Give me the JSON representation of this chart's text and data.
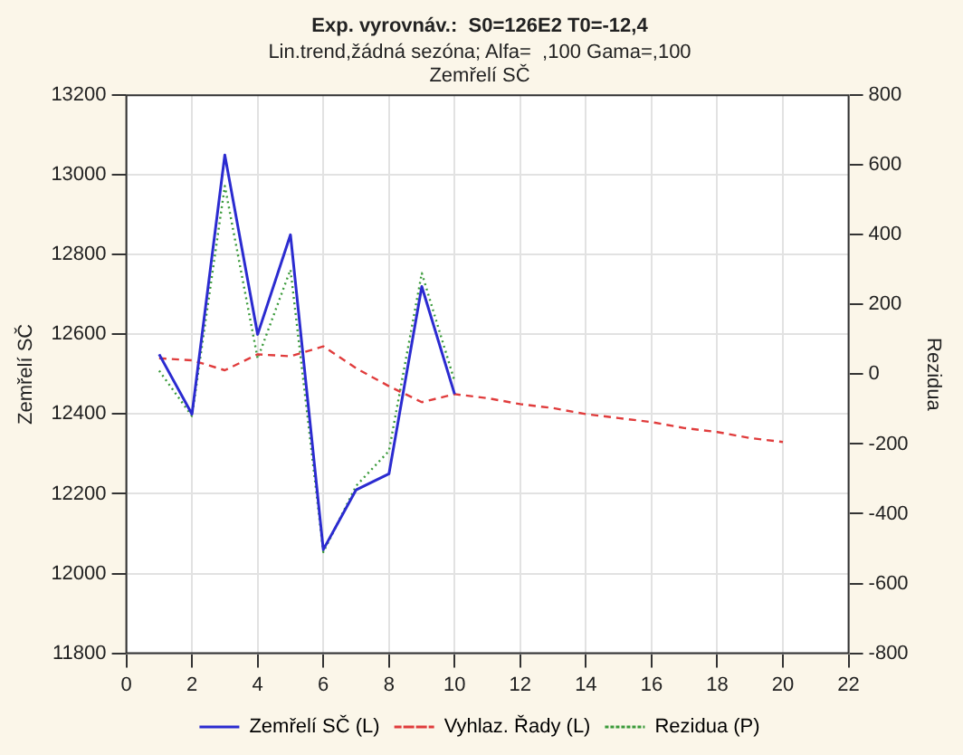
{
  "chart_data": {
    "type": "line",
    "title": "Exp. vyrovnáv.:  S0=126E2 T0=-12,4",
    "subtitle": [
      "Lin.trend,žádná sezóna; Alfa=  ,100 Gama=,100",
      "Zemřelí SČ"
    ],
    "ylabel": "Zemřelí SČ",
    "y2label": "Rezidua",
    "xlim": [
      0,
      22
    ],
    "xticks": [
      0,
      2,
      4,
      6,
      8,
      10,
      12,
      14,
      16,
      18,
      20,
      22
    ],
    "ylim": [
      11800,
      13200
    ],
    "yticks": [
      11800,
      12000,
      12200,
      12400,
      12600,
      12800,
      13000,
      13200
    ],
    "y2lim": [
      -800,
      800
    ],
    "y2ticks": [
      -800,
      -600,
      -400,
      -200,
      0,
      200,
      400,
      600,
      800
    ],
    "grid": true,
    "legend": "bottom",
    "marker": "none",
    "series": [
      {
        "name": "Zemřelí SČ (L)",
        "color": "#2b2bd0",
        "line_style": "solid",
        "x": [
          1,
          2,
          3,
          4,
          5,
          6,
          7,
          8,
          9,
          10
        ],
        "values": [
          12550,
          12400,
          13050,
          12600,
          12850,
          12060,
          12210,
          12250,
          12720,
          12450
        ]
      },
      {
        "name": "Vyhlaz. Řady (L)",
        "color": "#e03c3c",
        "line_style": "dashed",
        "x": [
          1,
          2,
          3,
          4,
          5,
          6,
          7,
          8,
          9,
          10,
          11,
          12,
          13,
          14,
          15,
          16,
          17,
          18,
          19,
          20
        ],
        "values": [
          12540,
          12535,
          12510,
          12550,
          12545,
          12570,
          12515,
          12470,
          12430,
          12450,
          12440,
          12425,
          12415,
          12400,
          12390,
          12380,
          12365,
          12355,
          12340,
          12330
        ]
      },
      {
        "name": "Rezidua (P)",
        "color": "#3a9a3a",
        "line_style": "dotted",
        "axis": "y2",
        "x": [
          1,
          2,
          3,
          4,
          5,
          6,
          7,
          8,
          9,
          10
        ],
        "values": [
          10,
          -120,
          540,
          45,
          300,
          -510,
          -320,
          -220,
          290,
          -20
        ]
      }
    ]
  }
}
